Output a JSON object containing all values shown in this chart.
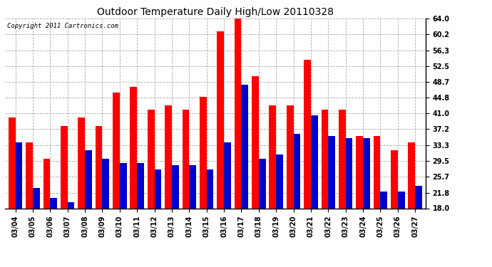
{
  "title": "Outdoor Temperature Daily High/Low 20110328",
  "copyright_text": "Copyright 2011 Cartronics.com",
  "dates": [
    "03/04",
    "03/05",
    "03/06",
    "03/07",
    "03/08",
    "03/09",
    "03/10",
    "03/11",
    "03/12",
    "03/13",
    "03/14",
    "03/15",
    "03/16",
    "03/17",
    "03/18",
    "03/19",
    "03/20",
    "03/21",
    "03/22",
    "03/23",
    "03/24",
    "03/25",
    "03/26",
    "03/27"
  ],
  "highs": [
    40.0,
    34.0,
    30.0,
    38.0,
    40.0,
    38.0,
    46.0,
    47.5,
    42.0,
    43.0,
    42.0,
    45.0,
    61.0,
    64.0,
    50.0,
    43.0,
    43.0,
    54.0,
    42.0,
    42.0,
    35.5,
    35.5,
    32.0,
    34.0
  ],
  "lows": [
    34.0,
    23.0,
    20.5,
    19.5,
    32.0,
    30.0,
    29.0,
    29.0,
    27.5,
    28.5,
    28.5,
    27.5,
    34.0,
    48.0,
    30.0,
    31.0,
    36.0,
    40.5,
    35.5,
    35.0,
    35.0,
    22.0,
    22.0,
    23.5
  ],
  "high_color": "#ff0000",
  "low_color": "#0000cc",
  "bg_color": "#ffffff",
  "grid_color": "#aaaaaa",
  "yticks": [
    18.0,
    21.8,
    25.7,
    29.5,
    33.3,
    37.2,
    41.0,
    44.8,
    48.7,
    52.5,
    56.3,
    60.2,
    64.0
  ],
  "ymin": 18.0,
  "ymax": 64.0,
  "bar_width": 0.4,
  "figwidth": 6.9,
  "figheight": 3.75,
  "dpi": 100,
  "title_fontsize": 10,
  "tick_fontsize": 7,
  "copyright_fontsize": 6.5
}
